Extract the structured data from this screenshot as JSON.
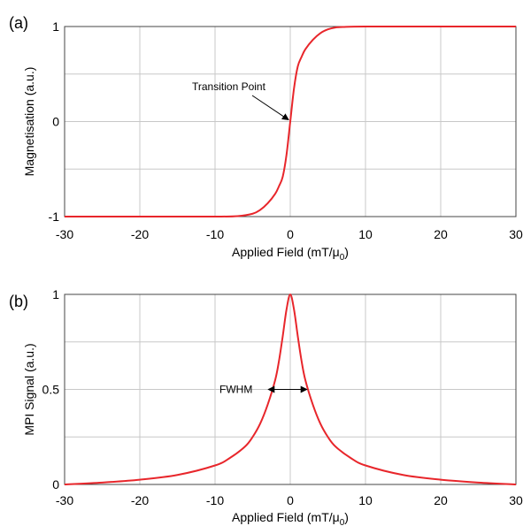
{
  "chart_data": [
    {
      "type": "line",
      "panel_label": "(a)",
      "xlabel": "Applied Field (mT/μ0)",
      "xlabel_main": "Applied Field (mT/μ",
      "xlabel_sub": "0",
      "xlabel_end": ")",
      "ylabel": "Magnetisation (a.u.)",
      "xlim": [
        -30,
        30
      ],
      "ylim": [
        -1,
        1
      ],
      "x_ticks": [
        -30,
        -20,
        -10,
        0,
        10,
        20,
        30
      ],
      "y_ticks": [
        -1,
        0,
        1
      ],
      "x_tick_labels": [
        "-30",
        "-20",
        "-10",
        "0",
        "10",
        "20",
        "30"
      ],
      "y_tick_labels": [
        "-1",
        "0",
        "1"
      ],
      "grid": true,
      "series": [
        {
          "color": "#e8262b",
          "x": [
            -30,
            -20,
            -10,
            -7,
            -5,
            -4,
            -3,
            -2,
            -1.5,
            -1,
            -0.5,
            0,
            0.5,
            1,
            1.5,
            2,
            3,
            4,
            5,
            6,
            7,
            10,
            20,
            30
          ],
          "y": [
            -1.0,
            -1.0,
            -1.0,
            -0.995,
            -0.97,
            -0.93,
            -0.86,
            -0.76,
            -0.68,
            -0.58,
            -0.35,
            0.0,
            0.35,
            0.58,
            0.68,
            0.76,
            0.86,
            0.93,
            0.97,
            0.99,
            0.995,
            1.0,
            1.0,
            1.0
          ]
        }
      ],
      "annotations": [
        {
          "text": "Transition Point",
          "x": 0,
          "y": 0
        }
      ]
    },
    {
      "type": "line",
      "panel_label": "(b)",
      "xlabel": "Applied Field (mT/μ0)",
      "xlabel_main": "Applied Field (mT/μ",
      "xlabel_sub": "0",
      "xlabel_end": ")",
      "ylabel": "MPI Signal (a.u.)",
      "xlim": [
        -30,
        30
      ],
      "ylim": [
        0,
        1
      ],
      "x_ticks": [
        -30,
        -20,
        -10,
        0,
        10,
        20,
        30
      ],
      "y_ticks": [
        0,
        0.5,
        1
      ],
      "x_tick_labels": [
        "-30",
        "-20",
        "-10",
        "0",
        "10",
        "20",
        "30"
      ],
      "y_tick_labels": [
        "0",
        "0.5",
        "1"
      ],
      "grid": true,
      "series": [
        {
          "color": "#e8262b",
          "x": [
            -30,
            -25,
            -20,
            -15,
            -10,
            -8,
            -6,
            -5,
            -4,
            -3,
            -2,
            -1.5,
            -1,
            -0.5,
            0,
            0.5,
            1,
            1.5,
            2,
            3,
            4,
            5,
            6,
            8,
            10,
            15,
            20,
            25,
            30
          ],
          "y": [
            0.0,
            0.01,
            0.025,
            0.05,
            0.1,
            0.14,
            0.2,
            0.25,
            0.32,
            0.42,
            0.55,
            0.65,
            0.78,
            0.92,
            1.0,
            0.92,
            0.78,
            0.65,
            0.55,
            0.42,
            0.32,
            0.25,
            0.2,
            0.14,
            0.1,
            0.05,
            0.025,
            0.01,
            0.0
          ]
        }
      ],
      "annotations": [
        {
          "text": "FWHM",
          "x_from": -2.2,
          "x_to": 2.2,
          "y": 0.5
        }
      ]
    }
  ]
}
